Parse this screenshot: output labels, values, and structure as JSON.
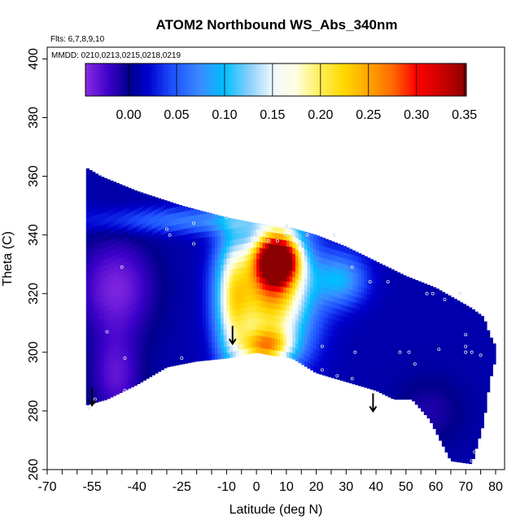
{
  "chart_data": {
    "type": "heatmap",
    "title": "ATOM2 Northbound WS_Abs_340nm",
    "flights_note": "Flts: 6,7,8,9,10",
    "dates_note": "MMDD: 0210,0213,0215,0218,0219",
    "xlabel": "Latitude (deg N)",
    "ylabel": "Theta (C)",
    "xlim": [
      -70,
      83
    ],
    "ylim": [
      260,
      404
    ],
    "x_ticks": [
      -70,
      -55,
      -40,
      -25,
      -10,
      0,
      10,
      20,
      30,
      40,
      50,
      60,
      70,
      80
    ],
    "x_tick_labels": [
      "-70",
      "-55",
      "-40",
      "-25",
      "-10",
      "0",
      "10",
      "20",
      "30",
      "40",
      "50",
      "60",
      "70",
      "80"
    ],
    "y_ticks": [
      260,
      280,
      300,
      320,
      340,
      360,
      380,
      400
    ],
    "y_tick_labels": [
      "260",
      "280",
      "300",
      "320",
      "340",
      "360",
      "380",
      "400"
    ],
    "colorbar": {
      "range": [
        -0.045,
        0.352
      ],
      "ticks": [
        0.0,
        0.05,
        0.1,
        0.15,
        0.2,
        0.25,
        0.3,
        0.35
      ],
      "tick_labels": [
        "0.00",
        "0.05",
        "0.10",
        "0.15",
        "0.20",
        "0.25",
        "0.30",
        "0.35"
      ],
      "color_stops": [
        [
          -0.045,
          "#8a2be2"
        ],
        [
          -0.02,
          "#3a00c8"
        ],
        [
          0.0,
          "#00008b"
        ],
        [
          0.02,
          "#0000cd"
        ],
        [
          0.045,
          "#1e4fff"
        ],
        [
          0.075,
          "#3a8cff"
        ],
        [
          0.1,
          "#00bfff"
        ],
        [
          0.125,
          "#87cefa"
        ],
        [
          0.15,
          "#f0f8ff"
        ],
        [
          0.175,
          "#ffffe0"
        ],
        [
          0.2,
          "#ffee55"
        ],
        [
          0.225,
          "#ffd700"
        ],
        [
          0.25,
          "#ffa500"
        ],
        [
          0.275,
          "#ff6a00"
        ],
        [
          0.3,
          "#ff0000"
        ],
        [
          0.325,
          "#d00000"
        ],
        [
          0.352,
          "#8b0000"
        ]
      ]
    },
    "arrows_latitude": [
      -55,
      -8,
      39
    ],
    "field_outline": {
      "upper": [
        [
          -57,
          363
        ],
        [
          -52,
          360
        ],
        [
          -40,
          355
        ],
        [
          -25,
          350
        ],
        [
          -10,
          346
        ],
        [
          0,
          344
        ],
        [
          10,
          343
        ],
        [
          20,
          340
        ],
        [
          30,
          336
        ],
        [
          40,
          331
        ],
        [
          50,
          326
        ],
        [
          60,
          322
        ],
        [
          72,
          315
        ],
        [
          76,
          312
        ],
        [
          78,
          306
        ],
        [
          80,
          302
        ]
      ],
      "lower": [
        [
          -57,
          282
        ],
        [
          -50,
          284
        ],
        [
          -40,
          289
        ],
        [
          -30,
          295
        ],
        [
          -20,
          297
        ],
        [
          -10,
          298
        ],
        [
          0,
          300
        ],
        [
          5,
          299
        ],
        [
          12,
          298
        ],
        [
          20,
          293
        ],
        [
          30,
          290
        ],
        [
          40,
          287
        ],
        [
          46,
          284
        ],
        [
          52,
          284
        ],
        [
          58,
          277
        ],
        [
          65,
          263
        ],
        [
          72,
          262
        ],
        [
          76,
          276
        ],
        [
          78,
          290
        ],
        [
          80,
          298
        ]
      ]
    },
    "anomalies": [
      {
        "name": "southern-minimum",
        "lat": -47,
        "theta": 322,
        "value": -0.04,
        "sx": 9,
        "sy": 12
      },
      {
        "name": "southern-low-tail",
        "lat": -47,
        "theta": 292,
        "value": -0.03,
        "sx": 6,
        "sy": 10
      },
      {
        "name": "tropical-plume-core",
        "lat": 7,
        "theta": 332,
        "value": 0.34,
        "sx": 5,
        "sy": 6
      },
      {
        "name": "tropical-plume-body",
        "lat": 5,
        "theta": 320,
        "value": 0.24,
        "sx": 9,
        "sy": 14
      },
      {
        "name": "plume-west-edge",
        "lat": -8,
        "theta": 318,
        "value": 0.14,
        "sx": 4,
        "sy": 16
      },
      {
        "name": "plume-base",
        "lat": 3,
        "theta": 302,
        "value": 0.17,
        "sx": 6,
        "sy": 4
      },
      {
        "name": "northern-light-blue",
        "lat": 28,
        "theta": 325,
        "value": 0.09,
        "sx": 6,
        "sy": 6
      },
      {
        "name": "top-edge-bright",
        "lat": -12,
        "theta": 345,
        "value": 0.07,
        "sx": 30,
        "sy": 3
      },
      {
        "name": "dark-patch-north",
        "lat": 58,
        "theta": 280,
        "value": -0.01,
        "sx": 8,
        "sy": 8
      }
    ],
    "background_value": 0.01,
    "sample_points": [
      [
        -56,
        281
      ],
      [
        -54,
        284
      ],
      [
        -50,
        307
      ],
      [
        -45,
        329
      ],
      [
        -44,
        298
      ],
      [
        -44,
        287
      ],
      [
        -30,
        342
      ],
      [
        -29,
        340
      ],
      [
        -25,
        298
      ],
      [
        -21,
        344
      ],
      [
        -21,
        337
      ],
      [
        -10,
        346
      ],
      [
        -9,
        300
      ],
      [
        -6,
        302
      ],
      [
        0,
        340
      ],
      [
        4,
        338
      ],
      [
        7,
        338
      ],
      [
        10,
        343
      ],
      [
        10,
        340
      ],
      [
        17,
        340
      ],
      [
        22,
        302
      ],
      [
        22,
        294
      ],
      [
        26,
        340
      ],
      [
        27,
        292
      ],
      [
        32,
        329
      ],
      [
        32,
        291
      ],
      [
        33,
        300
      ],
      [
        38,
        324
      ],
      [
        44,
        324
      ],
      [
        48,
        300
      ],
      [
        51,
        300
      ],
      [
        53,
        296
      ],
      [
        57,
        320
      ],
      [
        59,
        320
      ],
      [
        61,
        301
      ],
      [
        63,
        318
      ],
      [
        68,
        320
      ],
      [
        70,
        306
      ],
      [
        70,
        302
      ],
      [
        70,
        300
      ],
      [
        72,
        300
      ],
      [
        75,
        299
      ],
      [
        73,
        266
      ],
      [
        72,
        263
      ]
    ]
  }
}
